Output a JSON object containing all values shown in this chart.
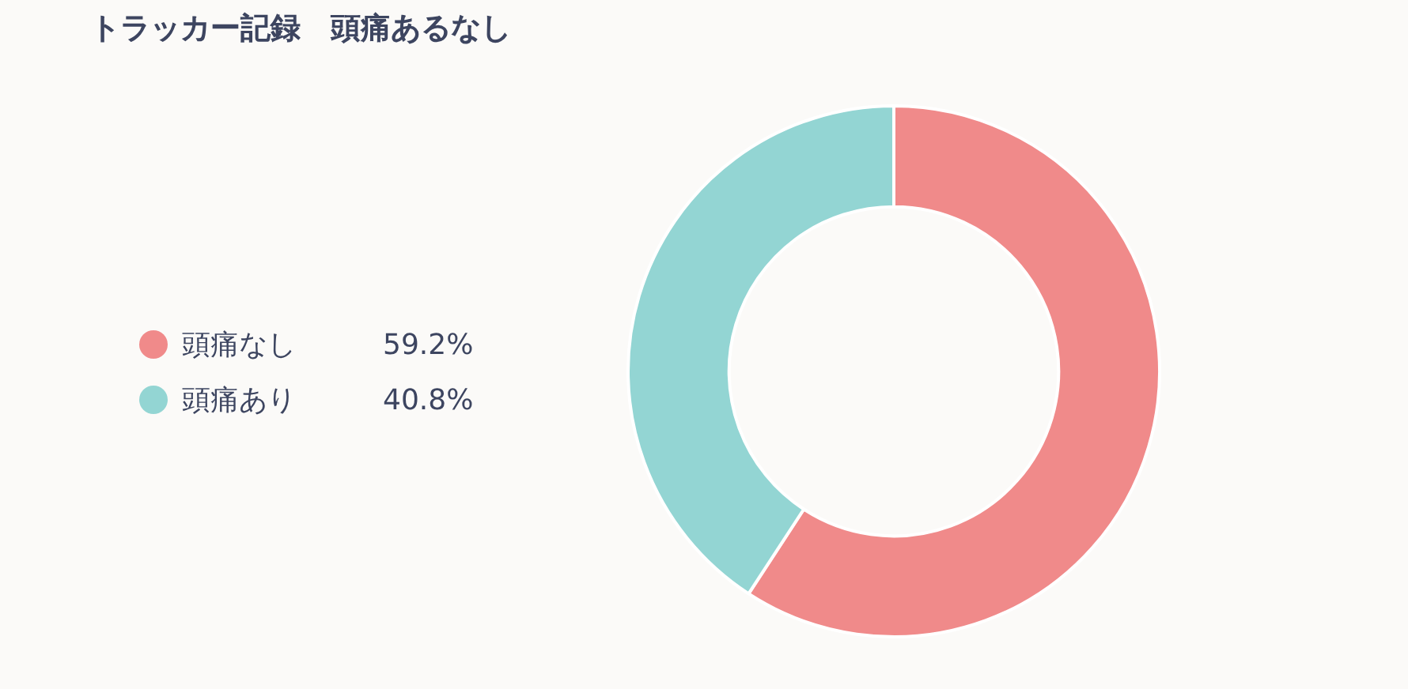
{
  "chart_data": {
    "type": "donut",
    "title": "トラッカー記録　頭痛あるなし",
    "categories": [
      "頭痛なし",
      "頭痛あり"
    ],
    "values": [
      59.2,
      40.8
    ],
    "colors": [
      "#f08a8a",
      "#93d5d3"
    ],
    "value_labels": [
      "59.2%",
      "40.8%"
    ],
    "legend": "left"
  }
}
